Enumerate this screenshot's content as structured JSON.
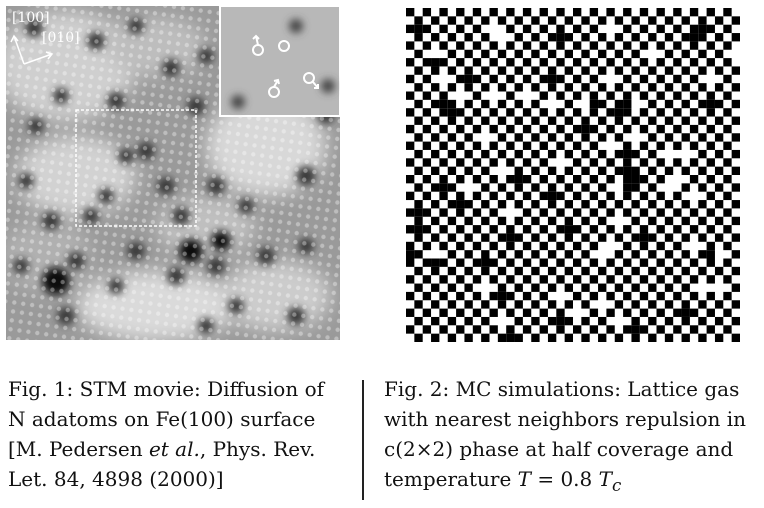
{
  "figure1": {
    "axis_label_100": "[100]",
    "axis_label_010": "[010]"
  },
  "caption1": {
    "lines": [
      "Fig. 1: STM movie: Diffusion of",
      "N adatoms on Fe(100) surface",
      [
        "[M. Pedersen ",
        "et al.",
        ", Phys. Rev."
      ],
      "Let. 84, 4898 (2000)]"
    ]
  },
  "caption2": {
    "lines": [
      "Fig. 2: MC simulations: Lattice gas",
      "with nearest neighbors repulsion in",
      "c(2×2) phase at half coverage and",
      [
        "temperature ",
        "T",
        " = 0.8 ",
        "T",
        "c"
      ]
    ]
  }
}
